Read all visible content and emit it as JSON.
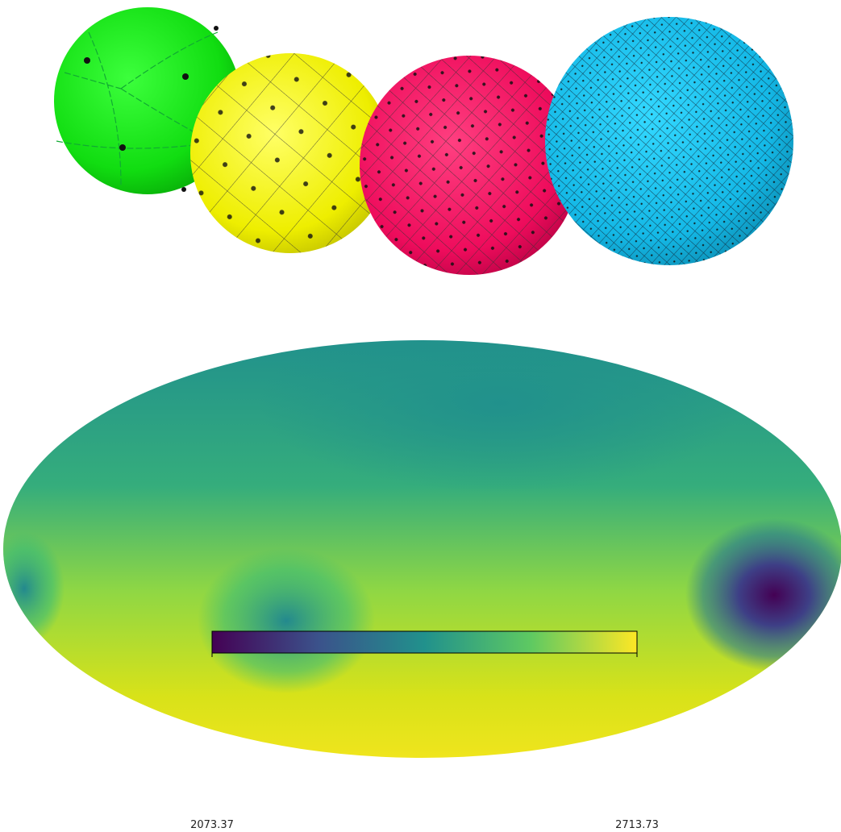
{
  "colorbar": {
    "lim": [
      2073.37,
      2713.73
    ],
    "ticks": [
      2073.37,
      2713.73
    ]
  }
}
